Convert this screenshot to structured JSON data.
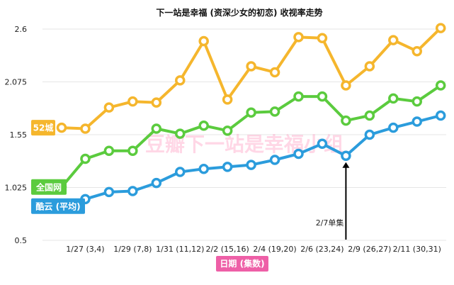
{
  "chart_data": {
    "type": "line",
    "title": "下一站是幸福 (资深少女的初恋) 收视率走势",
    "xlabel": "日期 (集数)",
    "ylabel": "",
    "ylim": [
      0.5,
      2.7
    ],
    "yticks": [
      "0.5",
      "1.025",
      "1.55",
      "2.075",
      "2.6"
    ],
    "x_ticks": [
      "1/27 (3,4)",
      "1/29 (7,8)",
      "1/31 (11,12)",
      "2/2 (15,16)",
      "2/4 (19,20)",
      "2/6 (23,24)",
      "2/9 (26,27)",
      "2/11 (30,31)"
    ],
    "grid": true,
    "series": [
      {
        "name": "52城",
        "color": "#F5B62D",
        "values": [
          1.62,
          1.61,
          1.82,
          1.88,
          1.87,
          2.09,
          2.48,
          1.9,
          2.23,
          2.17,
          2.52,
          2.51,
          2.04,
          2.23,
          2.49,
          2.38,
          2.61
        ]
      },
      {
        "name": "全国网",
        "color": "#5BCB3E",
        "values": [
          1.03,
          1.31,
          1.39,
          1.39,
          1.61,
          1.56,
          1.64,
          1.59,
          1.77,
          1.78,
          1.93,
          1.93,
          1.69,
          1.74,
          1.91,
          1.88,
          2.04
        ]
      },
      {
        "name": "酷云 (平均)",
        "color": "#2B9CDC",
        "values": [
          0.84,
          0.91,
          0.98,
          0.99,
          1.07,
          1.18,
          1.21,
          1.23,
          1.25,
          1.3,
          1.36,
          1.46,
          1.34,
          1.55,
          1.62,
          1.68,
          1.74
        ]
      }
    ],
    "annotations": [
      {
        "text": "2/7单集",
        "x_index": 12
      }
    ],
    "watermark": "豆瓣下一站是幸福小组"
  }
}
